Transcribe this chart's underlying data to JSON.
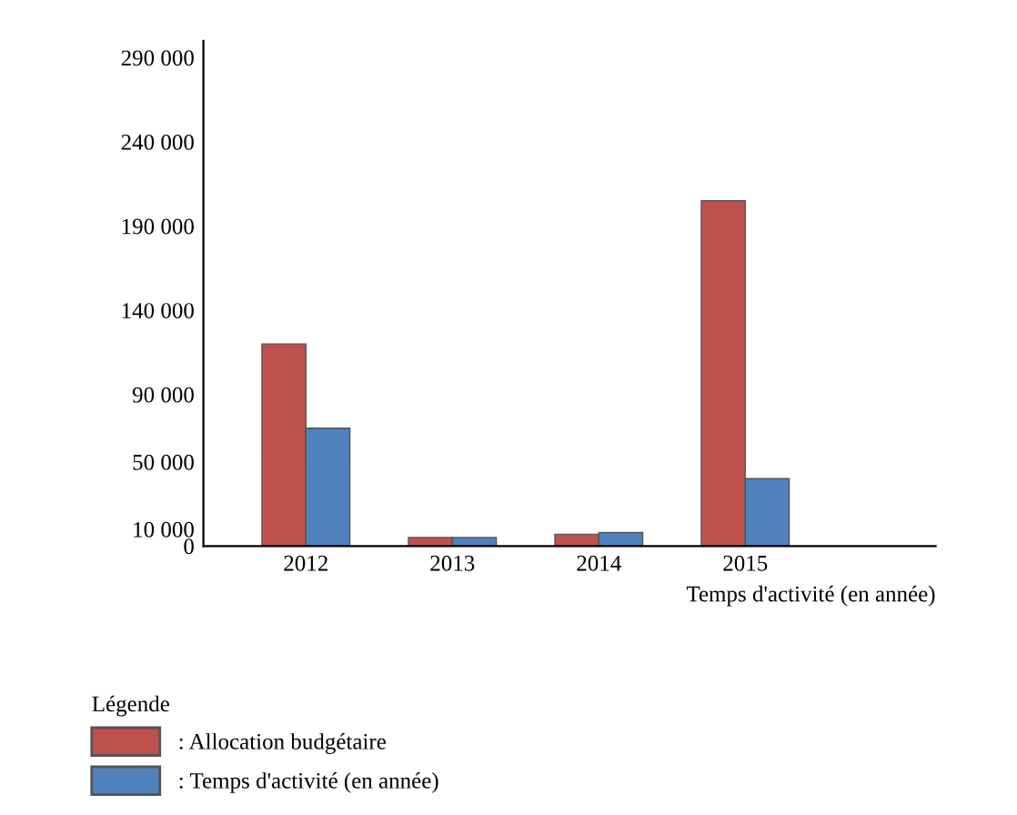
{
  "chart_data": {
    "type": "bar",
    "xlabel": "Temps d'activité (en année)",
    "legend_title": "Légende",
    "categories": [
      "2012",
      "2013",
      "2014",
      "2015"
    ],
    "series": [
      {
        "name": ": Allocation budgétaire",
        "color": "#c0504d",
        "values": [
          120000,
          5000,
          7000,
          205000
        ]
      },
      {
        "name": ": Temps d'activité (en année)",
        "color": "#4f81bd",
        "values": [
          70000,
          5000,
          8000,
          40000
        ]
      }
    ],
    "ylim": [
      0,
      300000
    ],
    "yticks": [
      {
        "value": 0,
        "label": "0"
      },
      {
        "value": 10000,
        "label": "10 000"
      },
      {
        "value": 50000,
        "label": "50 000"
      },
      {
        "value": 90000,
        "label": "90 000"
      },
      {
        "value": 140000,
        "label": "140 000"
      },
      {
        "value": 190000,
        "label": "190 000"
      },
      {
        "value": 240000,
        "label": "240 000"
      },
      {
        "value": 290000,
        "label": "290 000"
      }
    ],
    "grid": false,
    "legend": "bottom"
  }
}
